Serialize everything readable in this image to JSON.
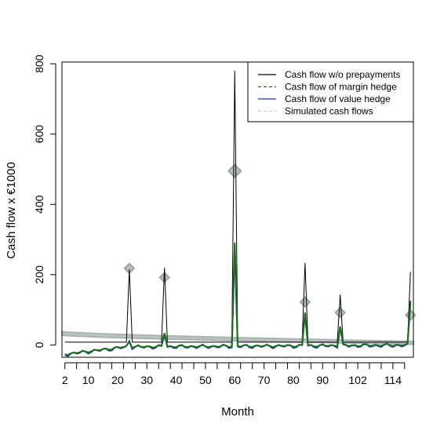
{
  "chart_data": {
    "type": "line",
    "xlabel": "Month",
    "ylabel": "Cash flow x €1000",
    "xlim": [
      1,
      121
    ],
    "ylim": [
      -35,
      805
    ],
    "x_ticks": [
      2,
      6,
      10,
      14,
      18,
      22,
      26,
      30,
      34,
      38,
      42,
      46,
      50,
      54,
      58,
      62,
      66,
      70,
      74,
      78,
      82,
      86,
      90,
      94,
      98,
      102,
      106,
      110,
      114,
      118
    ],
    "x_tick_labels": [
      "2",
      "10",
      "20",
      "30",
      "40",
      "50",
      "60",
      "70",
      "80",
      "90",
      "102",
      "114"
    ],
    "x_tick_label_positions": [
      2,
      10,
      20,
      30,
      40,
      50,
      60,
      70,
      80,
      90,
      102,
      114
    ],
    "y_ticks": [
      0,
      200,
      400,
      600,
      800
    ],
    "y_tick_labels": [
      "0",
      "200",
      "400",
      "600",
      "800"
    ],
    "legend_position": "top-right",
    "legend": [
      {
        "label": "Cash flow w/o prepayments",
        "color": "#000000",
        "style": "solid"
      },
      {
        "label": "Cash flow of margin hedge",
        "color": "#1a6b1a",
        "style": "dashed"
      },
      {
        "label": "Cash flow of value hedge",
        "color": "#2233bb",
        "style": "solid"
      },
      {
        "label": "Simulated cash flows",
        "color": "#c8cccc",
        "style": "dashed"
      }
    ],
    "base_cash_flow_level": 8,
    "spikes": [
      {
        "month": 24,
        "base": 215,
        "margin": 10,
        "value": 10,
        "simulated_marker": 218
      },
      {
        "month": 36,
        "base": 220,
        "margin": 33,
        "value": 30,
        "simulated_marker": 192
      },
      {
        "month": 60,
        "base": 780,
        "margin": 290,
        "value": 280,
        "simulated_marker": 495
      },
      {
        "month": 84,
        "base": 233,
        "margin": 92,
        "value": 88,
        "simulated_marker": 122
      },
      {
        "month": 96,
        "base": 143,
        "margin": 52,
        "value": 50,
        "simulated_marker": 92
      },
      {
        "month": 120,
        "base": 208,
        "margin": 125,
        "value": 120,
        "simulated_marker": 85
      }
    ],
    "simulated_band": {
      "start_upper": 38,
      "start_lower": 28,
      "end_upper": 10,
      "end_lower": 2
    }
  }
}
